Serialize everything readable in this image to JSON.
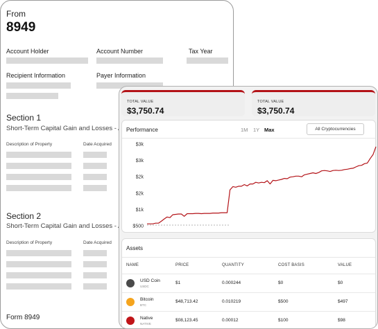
{
  "form": {
    "from_label": "From",
    "form_number": "8949",
    "labels": {
      "account_holder": "Account Holder",
      "account_number": "Account Number",
      "tax_year": "Tax Year",
      "recipient_information": "Recipient Information",
      "payer_information": "Payer Information"
    },
    "sections": [
      {
        "title": "Section 1",
        "subtitle": "Short-Term Capital Gain and Losses - A",
        "col_description": "Description of Property",
        "col_date_acquired": "Date Acquired"
      },
      {
        "title": "Section 2",
        "subtitle": "Short-Term Capital Gain and Losses - A",
        "col_description": "Description of Property",
        "col_date_acquired": "Date Acquired"
      }
    ],
    "footer": "Form 8949"
  },
  "summary_cards": [
    {
      "label": "TOTAL VALUE",
      "value": "$3,750.74"
    },
    {
      "label": "TOTAL VALUE",
      "value": "$3,750.74"
    }
  ],
  "performance": {
    "title": "Performance",
    "ranges": [
      {
        "label": "1M",
        "active": false
      },
      {
        "label": "1Y",
        "active": false
      },
      {
        "label": "Max",
        "active": true
      }
    ],
    "filter_label": "All Cryptocurrencies"
  },
  "chart_data": {
    "type": "line",
    "title": "",
    "xlabel": "",
    "ylabel": "",
    "y_tick_labels": [
      "$500",
      "$1k",
      "$2k",
      "$2k",
      "$3k",
      "$3k"
    ],
    "y_tick_values": [
      500,
      1000,
      1500,
      2000,
      2500,
      3000
    ],
    "ylim": [
      500,
      3000
    ],
    "grid": false,
    "line_color": "#b31217",
    "series": [
      {
        "values": [
          560,
          560,
          560,
          580,
          580,
          640,
          710,
          770,
          750,
          840,
          850,
          860,
          860,
          790,
          870,
          870,
          870,
          880,
          880,
          870,
          880,
          880,
          880,
          890,
          890,
          890,
          900,
          900,
          900,
          1600,
          1700,
          1680,
          1710,
          1710,
          1760,
          1720,
          1780,
          1780,
          1830,
          1810,
          1830,
          1820,
          1880,
          1780,
          1890,
          1880,
          1900,
          1920,
          1950,
          1940,
          1990,
          2000,
          2020,
          2020,
          2000,
          2060,
          2080,
          2100,
          2120,
          2100,
          2130,
          2180,
          2190,
          2180,
          2160,
          2190,
          2200,
          2190,
          2200,
          2220,
          2230,
          2250,
          2260,
          2300,
          2340,
          2350,
          2400,
          2420,
          2560,
          2680,
          2920
        ]
      }
    ],
    "baseline": {
      "style": "dashed",
      "color": "#9a9a9a",
      "values": [
        500,
        500,
        500,
        500,
        500,
        500,
        500,
        500,
        500,
        500,
        500,
        500,
        500,
        500,
        500,
        500,
        500,
        500,
        500,
        500,
        500,
        500,
        500,
        500,
        500,
        500,
        500,
        500,
        500,
        500
      ]
    }
  },
  "assets": {
    "title": "Assets",
    "columns": [
      "NAME",
      "PRICE",
      "QUANTITY",
      "COST BASIS",
      "VALUE"
    ],
    "rows": [
      {
        "name": "USD Coin",
        "symbol": "USDC",
        "icon": "usd-coin-icon",
        "color": "#4a4a4a",
        "price": "$1",
        "quantity": "0.000244",
        "cost_basis": "$0",
        "value": "$0"
      },
      {
        "name": "Bitcoin",
        "symbol": "BTC",
        "icon": "bitcoin-icon",
        "color": "#f5a41d",
        "price": "$48,713.42",
        "quantity": "0.010219",
        "cost_basis": "$500",
        "value": "$497"
      },
      {
        "name": "Native",
        "symbol": "NATIVE",
        "icon": "native-icon",
        "color": "#c01418",
        "price": "$08,123.45",
        "quantity": "0.00012",
        "cost_basis": "$100",
        "value": "$98"
      }
    ]
  }
}
